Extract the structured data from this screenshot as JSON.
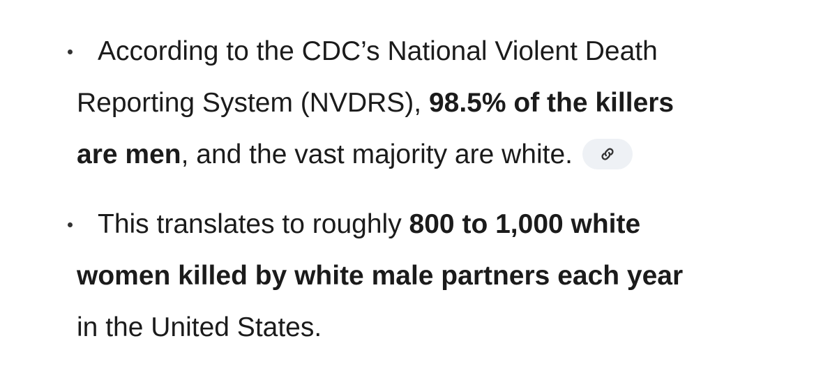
{
  "bullets": [
    {
      "lines": [
        [
          {
            "text": "According to the CDC’s National Violent Death",
            "bold": false
          }
        ],
        [
          {
            "text": "Reporting System (NVDRS), ",
            "bold": false
          },
          {
            "text": "98.5% of the killers",
            "bold": true
          }
        ],
        [
          {
            "text": "are men",
            "bold": true
          },
          {
            "text": ", and the vast majority are white.",
            "bold": false
          }
        ]
      ],
      "link": true
    },
    {
      "lines": [
        [
          {
            "text": "This translates to roughly ",
            "bold": false
          },
          {
            "text": "800 to 1,000 white",
            "bold": true
          }
        ],
        [
          {
            "text": "women killed by white male partners each year",
            "bold": true
          }
        ],
        [
          {
            "text": "in the United States.",
            "bold": false
          }
        ]
      ],
      "link": false
    }
  ]
}
